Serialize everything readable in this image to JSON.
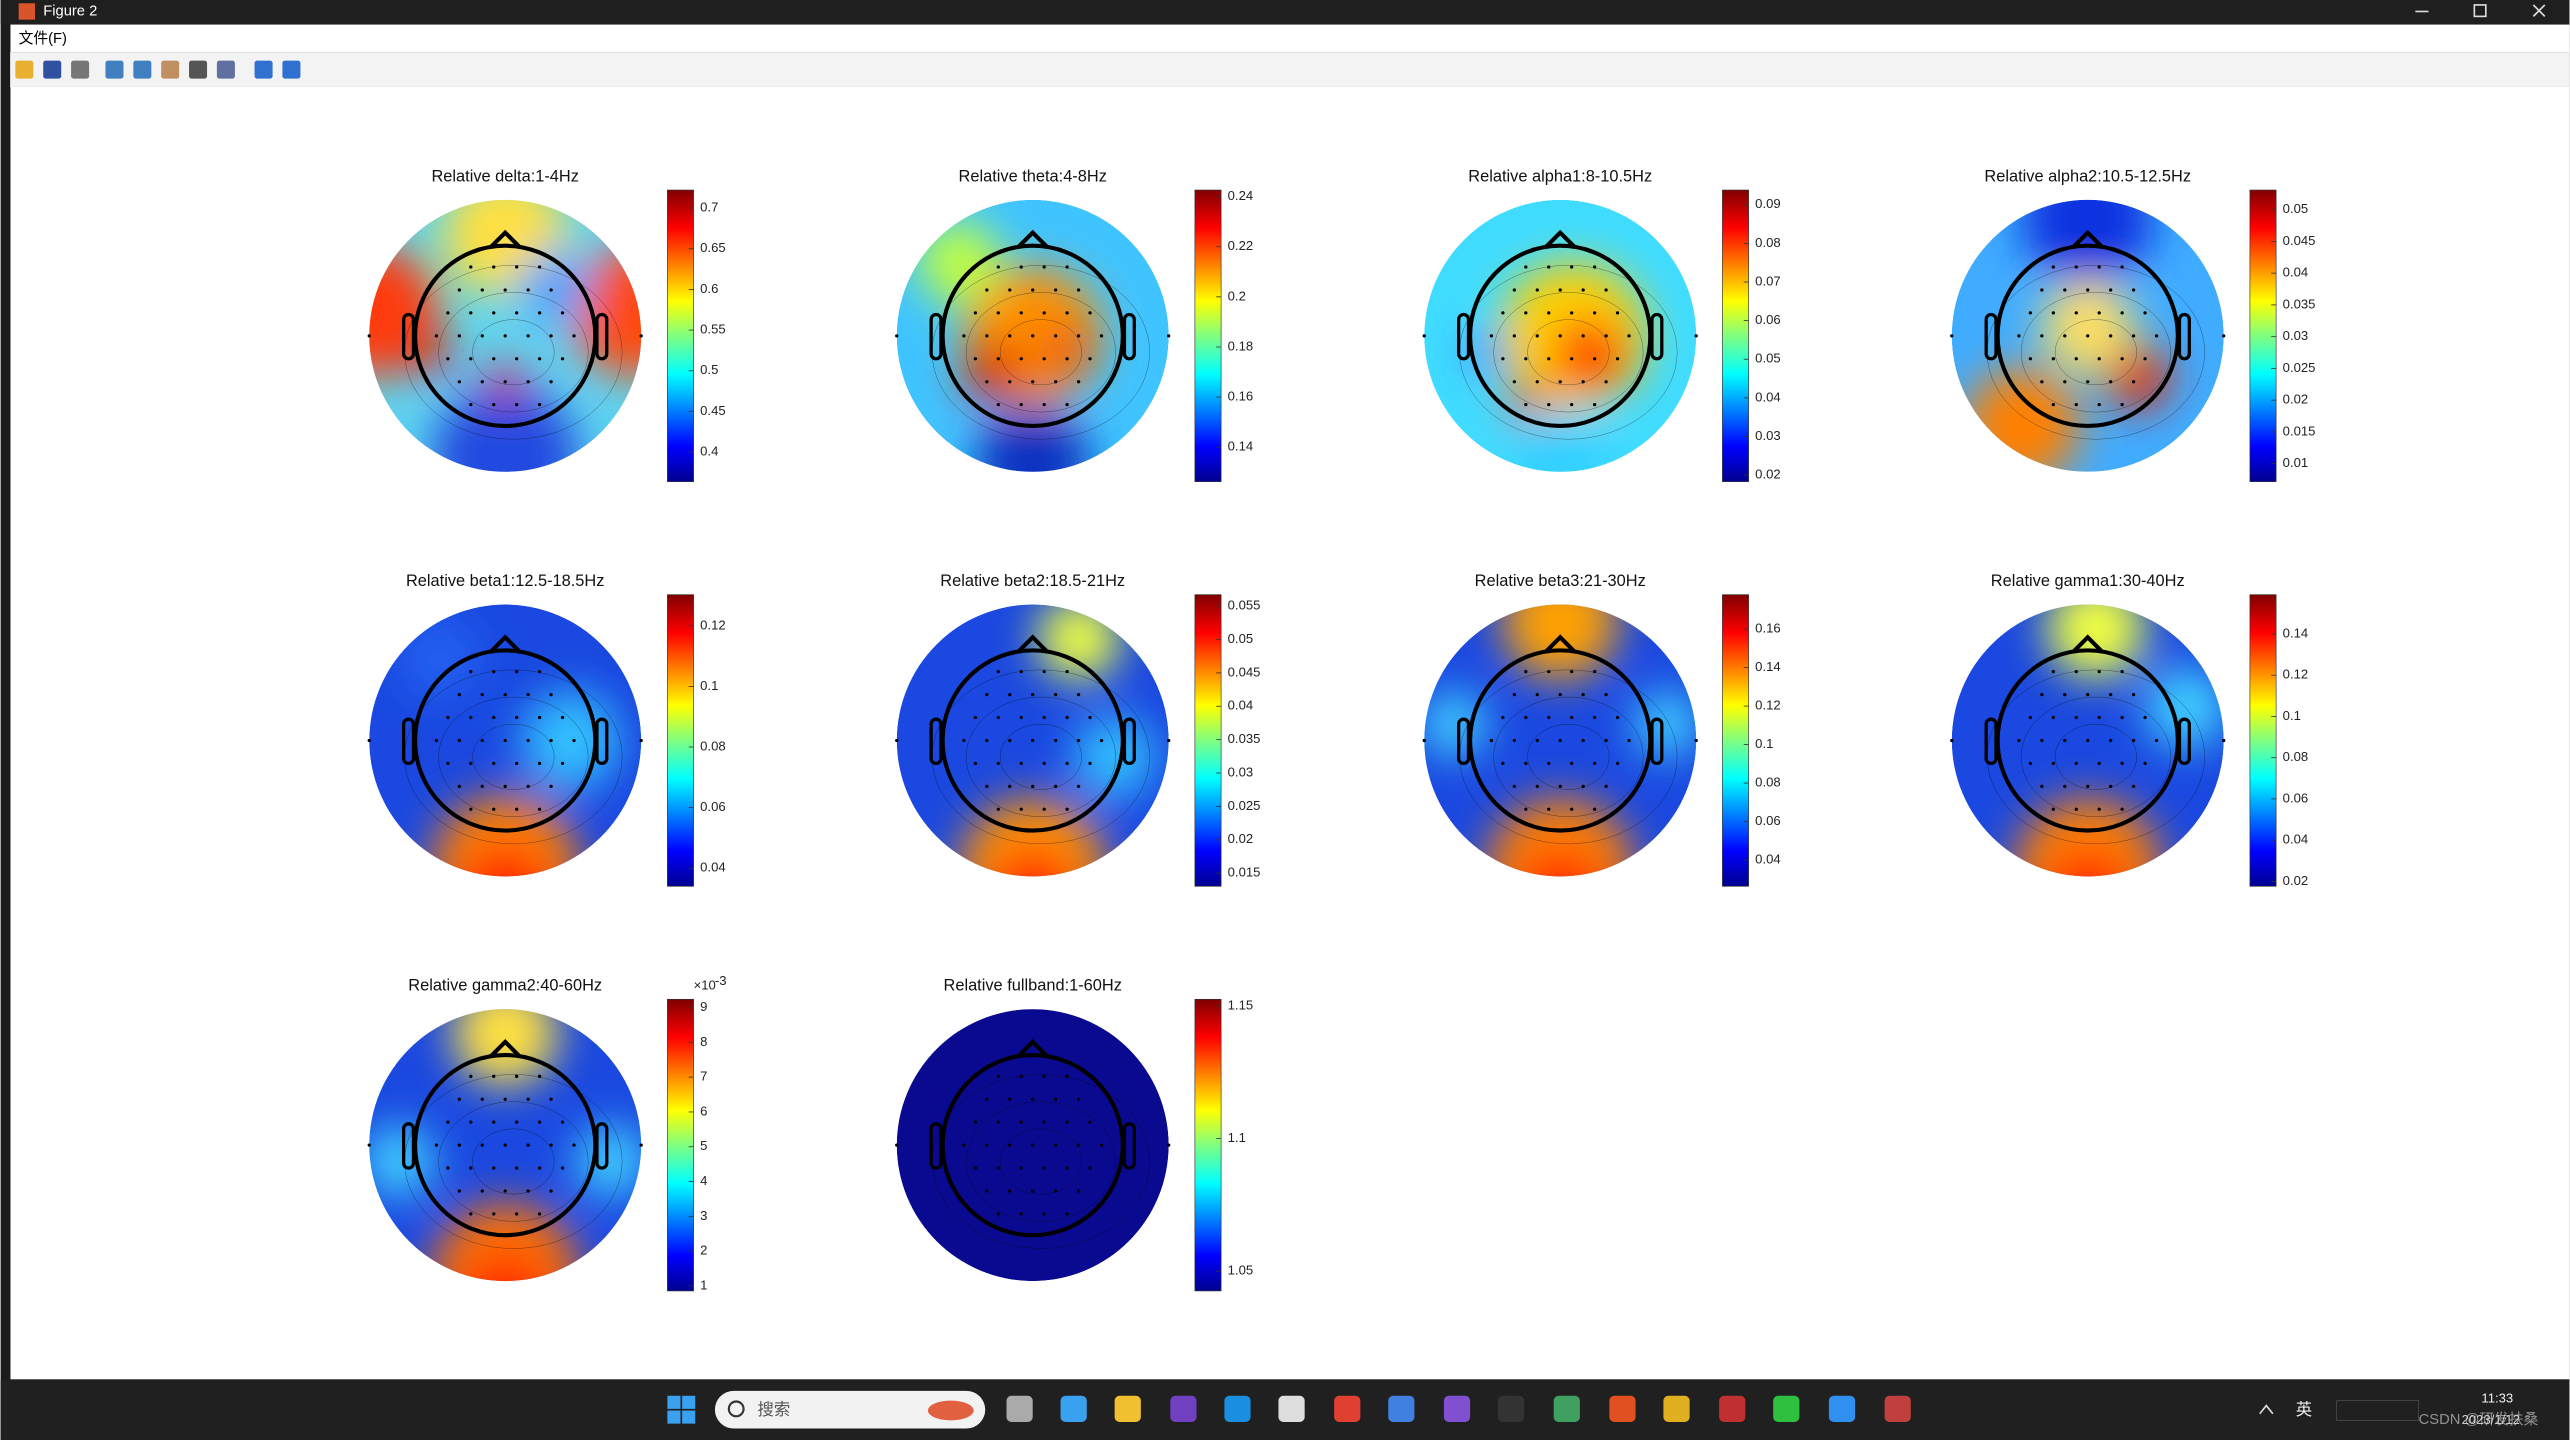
{
  "window": {
    "title": "Figure 2"
  },
  "menu": [
    "文件(F)"
  ],
  "plots": [
    {
      "title": "Relative delta:1-4Hz",
      "colorbar_ticks": [
        0.7,
        0.65,
        0.6,
        0.55,
        0.5,
        0.45,
        0.4
      ]
    },
    {
      "title": "Relative theta:4-8Hz",
      "colorbar_ticks": [
        0.24,
        0.22,
        0.2,
        0.18,
        0.16,
        0.14
      ]
    },
    {
      "title": "Relative alpha1:8-10.5Hz",
      "colorbar_ticks": [
        0.09,
        0.08,
        0.07,
        0.06,
        0.05,
        0.04,
        0.03,
        0.02
      ]
    },
    {
      "title": "Relative alpha2:10.5-12.5Hz",
      "colorbar_ticks": [
        0.05,
        0.045,
        0.04,
        0.035,
        0.03,
        0.025,
        0.02,
        0.015,
        0.01
      ]
    },
    {
      "title": "Relative beta1:12.5-18.5Hz",
      "colorbar_ticks": [
        0.12,
        0.1,
        0.08,
        0.06,
        0.04
      ]
    },
    {
      "title": "Relative beta2:18.5-21Hz",
      "colorbar_ticks": [
        0.055,
        0.05,
        0.045,
        0.04,
        0.035,
        0.03,
        0.025,
        0.02,
        0.015
      ]
    },
    {
      "title": "Relative beta3:21-30Hz",
      "colorbar_ticks": [
        0.16,
        0.14,
        0.12,
        0.1,
        0.08,
        0.06,
        0.04
      ]
    },
    {
      "title": "Relative gamma1:30-40Hz",
      "colorbar_ticks": [
        0.14,
        0.12,
        0.1,
        0.08,
        0.06,
        0.04,
        0.02
      ]
    },
    {
      "title": "Relative gamma2:40-60Hz",
      "colorbar_ticks": [
        9,
        8,
        7,
        6,
        5,
        4,
        3,
        2,
        1
      ],
      "colorbar_exponent": {
        "base": "×10",
        "power": "-3"
      }
    },
    {
      "title": "Relative fullband:1-60Hz",
      "colorbar_ticks": [
        1.15,
        1.1,
        1.05
      ]
    }
  ],
  "taskbar": {
    "search": "搜索",
    "language": "英",
    "time": "11:33",
    "date": "2023/1/12",
    "watermark": "CSDN @研发扶桑"
  }
}
